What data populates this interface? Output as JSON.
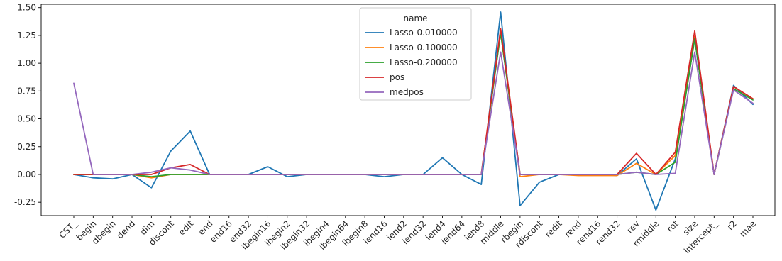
{
  "chart_data": {
    "type": "line",
    "title": "",
    "xlabel": "",
    "ylabel": "",
    "ylim": [
      -0.37,
      1.53
    ],
    "yticks": [
      "-0.25",
      "0.00",
      "0.25",
      "0.50",
      "0.75",
      "1.00",
      "1.25",
      "1.50"
    ],
    "ytick_values": [
      -0.25,
      0.0,
      0.25,
      0.5,
      0.75,
      1.0,
      1.25,
      1.5
    ],
    "grid": false,
    "legend": {
      "title": "name",
      "placement": "upper-center"
    },
    "categories": [
      "CST_",
      "begin",
      "dbegin",
      "dend",
      "dim",
      "discont",
      "edit",
      "end",
      "end16",
      "end32",
      "ibegin16",
      "ibegin2",
      "ibegin32",
      "ibegin4",
      "ibegin64",
      "ibegin8",
      "iend16",
      "iend2",
      "iend32",
      "iend4",
      "iend64",
      "iend8",
      "middle",
      "rbegin",
      "rdiscont",
      "redit",
      "rend",
      "rend16",
      "rend32",
      "rev",
      "rmiddle",
      "rot",
      "size",
      "intercept_",
      "r2",
      "mae"
    ],
    "series": [
      {
        "name": "Lasso-0.010000",
        "color": "#1f77b4",
        "values": [
          0.0,
          -0.03,
          -0.04,
          0.0,
          -0.12,
          0.21,
          0.39,
          0.0,
          0.0,
          0.0,
          0.07,
          -0.02,
          0.0,
          0.0,
          0.0,
          0.0,
          -0.02,
          0.0,
          0.0,
          0.15,
          0.0,
          -0.09,
          1.46,
          -0.28,
          -0.07,
          0.0,
          0.0,
          0.0,
          -0.01,
          0.14,
          -0.32,
          0.14,
          1.22,
          0.0,
          0.8,
          0.63
        ]
      },
      {
        "name": "Lasso-0.100000",
        "color": "#ff7f0e",
        "values": [
          0.0,
          0.0,
          0.0,
          0.0,
          -0.03,
          0.0,
          0.0,
          0.0,
          0.0,
          0.0,
          0.0,
          0.0,
          0.0,
          0.0,
          0.0,
          0.0,
          0.0,
          0.0,
          0.0,
          0.0,
          0.0,
          0.0,
          1.28,
          -0.02,
          0.0,
          0.0,
          -0.01,
          -0.01,
          -0.01,
          0.1,
          0.0,
          0.17,
          1.24,
          0.0,
          0.79,
          0.68
        ]
      },
      {
        "name": "Lasso-0.200000",
        "color": "#2ca02c",
        "values": [
          0.0,
          0.0,
          0.0,
          0.0,
          -0.02,
          0.0,
          0.0,
          0.0,
          0.0,
          0.0,
          0.0,
          0.0,
          0.0,
          0.0,
          0.0,
          0.0,
          0.0,
          0.0,
          0.0,
          0.0,
          0.0,
          0.0,
          1.27,
          0.0,
          0.0,
          0.0,
          0.0,
          0.0,
          0.0,
          0.02,
          0.0,
          0.11,
          1.22,
          0.0,
          0.77,
          0.67
        ]
      },
      {
        "name": "pos",
        "color": "#d62728",
        "values": [
          0.0,
          0.0,
          0.0,
          0.0,
          0.0,
          0.06,
          0.09,
          0.0,
          0.0,
          0.0,
          0.0,
          0.0,
          0.0,
          0.0,
          0.0,
          0.0,
          0.0,
          0.0,
          0.0,
          0.0,
          0.0,
          0.0,
          1.31,
          0.0,
          0.0,
          0.0,
          0.0,
          0.0,
          0.0,
          0.19,
          0.0,
          0.2,
          1.29,
          0.0,
          0.79,
          0.68
        ]
      },
      {
        "name": "medpos",
        "color": "#9467bd",
        "values": [
          0.82,
          0.0,
          0.0,
          0.0,
          0.02,
          0.06,
          0.04,
          0.0,
          0.0,
          0.0,
          0.0,
          0.0,
          0.0,
          0.0,
          0.0,
          0.0,
          0.0,
          0.0,
          0.0,
          0.0,
          0.0,
          0.0,
          1.1,
          0.0,
          0.0,
          0.0,
          0.0,
          0.0,
          0.0,
          0.02,
          0.0,
          0.01,
          1.1,
          0.0,
          0.76,
          0.64
        ]
      }
    ]
  }
}
